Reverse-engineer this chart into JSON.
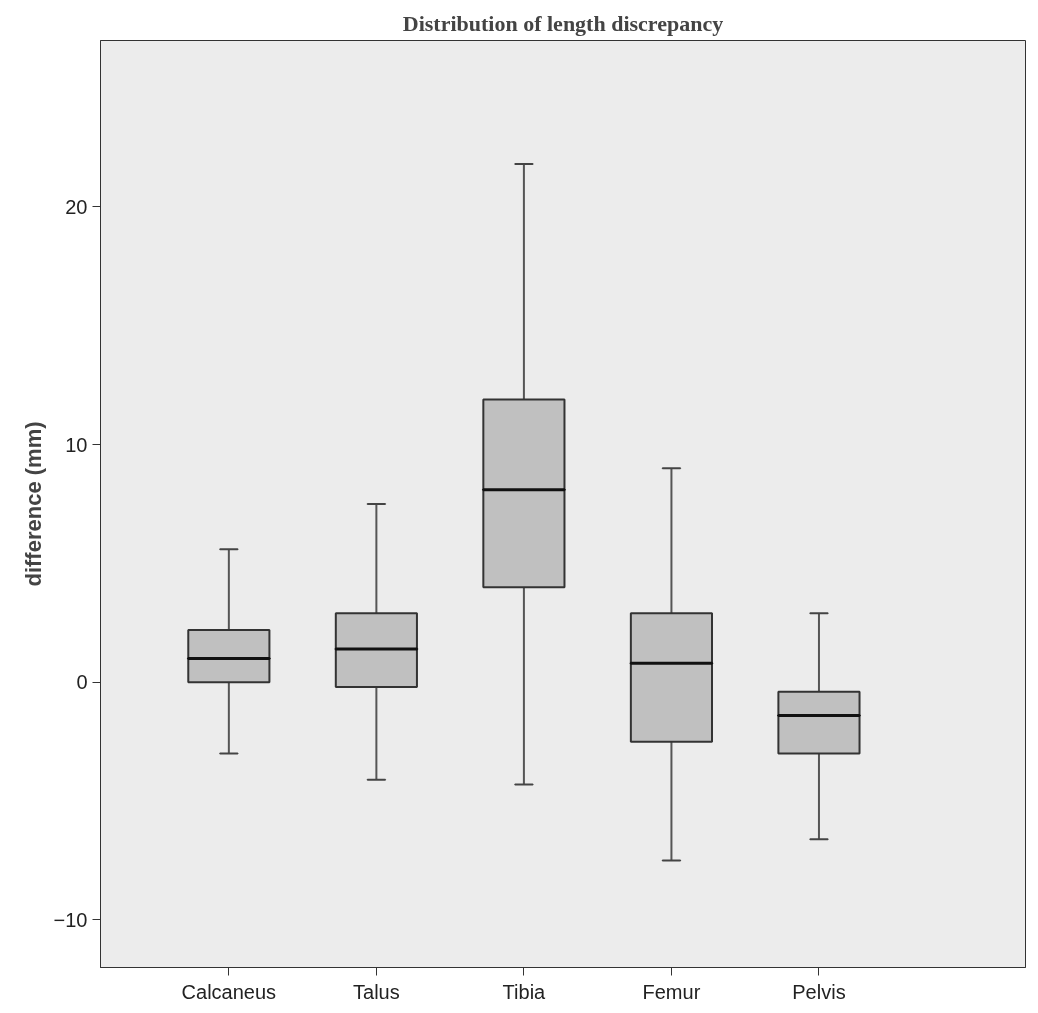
{
  "chart_data": {
    "type": "box",
    "title": "Distribution of length discrepancy",
    "ylabel": "difference (mm)",
    "categories": [
      "Calcaneus",
      "Talus",
      "Tibia",
      "Femur",
      "Pelvis"
    ],
    "color": "#c0c0c0",
    "boxes": [
      {
        "low": -3.0,
        "q1": 0.0,
        "median": 1.0,
        "q3": 2.2,
        "high": 5.6
      },
      {
        "low": -4.1,
        "q1": -0.2,
        "median": 1.4,
        "q3": 2.9,
        "high": 7.5
      },
      {
        "low": -4.3,
        "q1": 4.0,
        "median": 8.1,
        "q3": 11.9,
        "high": 21.8
      },
      {
        "low": -7.5,
        "q1": -2.5,
        "median": 0.8,
        "q3": 2.9,
        "high": 9.0
      },
      {
        "low": -6.6,
        "q1": -3.0,
        "median": -1.4,
        "q3": -0.4,
        "high": 2.9
      }
    ],
    "ylim": [
      -12,
      27
    ],
    "yticks": [
      -10,
      0,
      10,
      20
    ],
    "grid": false
  }
}
